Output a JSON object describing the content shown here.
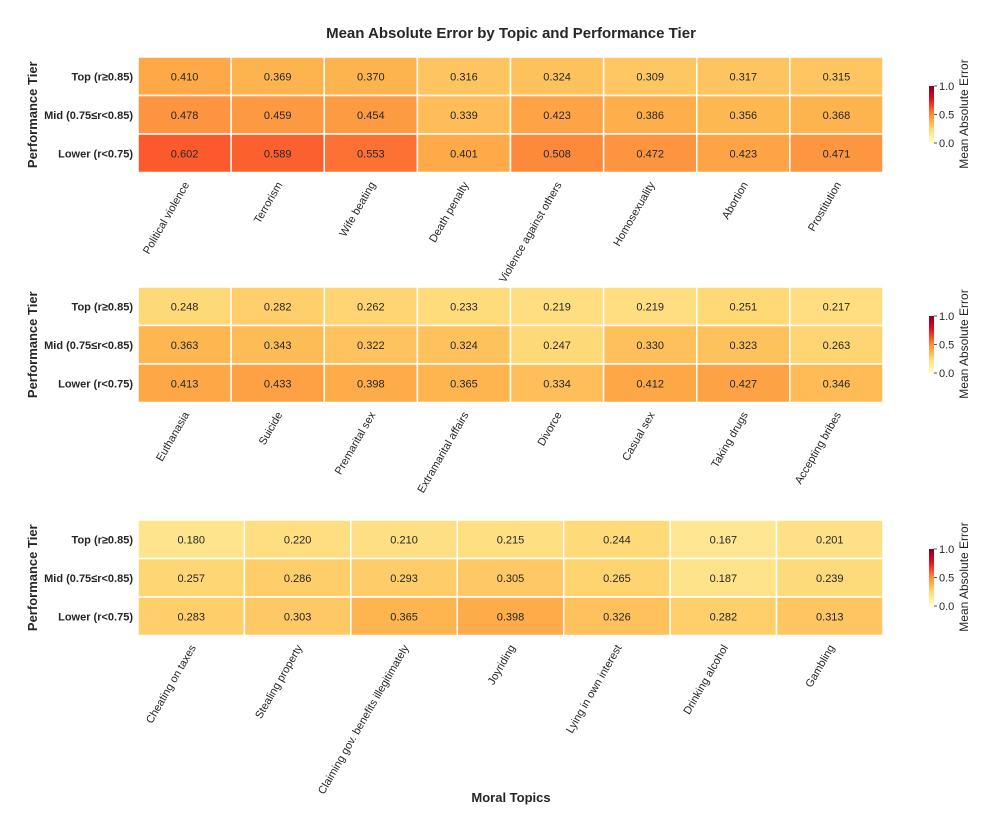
{
  "chart_data": {
    "type": "heatmap",
    "title": "Mean Absolute Error by Topic and Performance Tier",
    "xlabel": "Moral Topics",
    "ylabel": "Performance Tier",
    "colorbar_label": "Mean Absolute Error",
    "colorbar_ticks": [
      "0.0",
      "0.5",
      "1.0"
    ],
    "colorbar_range": [
      0,
      1
    ],
    "colormap": [
      "#ffffcc",
      "#ffeda0",
      "#fed976",
      "#feb24c",
      "#fd8d3c",
      "#fc4e2a",
      "#e31a1c",
      "#bd0026",
      "#800026"
    ],
    "grid": false,
    "rows": [
      "Top (r≥0.85)",
      "Mid (0.75≤r<0.85)",
      "Lower (r<0.75)"
    ],
    "panels": [
      {
        "columns": [
          "Political violence",
          "Terrorism",
          "Wife beating",
          "Death penalty",
          "Violence against others",
          "Homosexuality",
          "Abortion",
          "Prostitution"
        ],
        "values": [
          [
            "0.410",
            "0.369",
            "0.370",
            "0.316",
            "0.324",
            "0.309",
            "0.317",
            "0.315"
          ],
          [
            "0.478",
            "0.459",
            "0.454",
            "0.339",
            "0.423",
            "0.386",
            "0.356",
            "0.368"
          ],
          [
            "0.602",
            "0.589",
            "0.553",
            "0.401",
            "0.508",
            "0.472",
            "0.423",
            "0.471"
          ]
        ]
      },
      {
        "columns": [
          "Euthanasia",
          "Suicide",
          "Premarital sex",
          "Extramarital affairs",
          "Divorce",
          "Casual sex",
          "Taking drugs",
          "Accepting bribes"
        ],
        "values": [
          [
            "0.248",
            "0.282",
            "0.262",
            "0.233",
            "0.219",
            "0.219",
            "0.251",
            "0.217"
          ],
          [
            "0.363",
            "0.343",
            "0.322",
            "0.324",
            "0.247",
            "0.330",
            "0.323",
            "0.263"
          ],
          [
            "0.413",
            "0.433",
            "0.398",
            "0.365",
            "0.334",
            "0.412",
            "0.427",
            "0.346"
          ]
        ]
      },
      {
        "columns": [
          "Cheating on taxes",
          "Stealing property",
          "Claiming gov. benefits illegitimately",
          "Joyriding",
          "Lying in own interest",
          "Drinking alcohol",
          "Gambling"
        ],
        "values": [
          [
            "0.180",
            "0.220",
            "0.210",
            "0.215",
            "0.244",
            "0.167",
            "0.201"
          ],
          [
            "0.257",
            "0.286",
            "0.293",
            "0.305",
            "0.265",
            "0.187",
            "0.239"
          ],
          [
            "0.283",
            "0.303",
            "0.365",
            "0.398",
            "0.326",
            "0.282",
            "0.313"
          ]
        ]
      }
    ]
  }
}
